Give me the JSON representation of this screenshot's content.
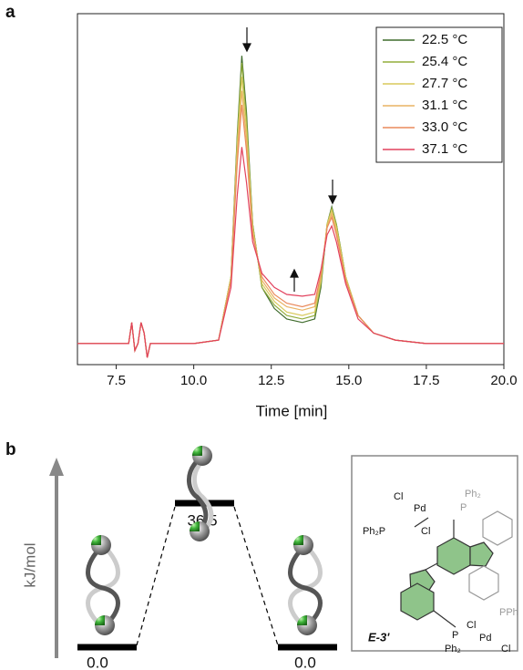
{
  "chart_data": {
    "type": "line",
    "panel_label": "a",
    "xlabel": "Time [min]",
    "xlim": [
      6.25,
      20.0
    ],
    "xticks": [
      7.5,
      {
        "value": 10,
        "label": "10.0"
      },
      12.5,
      {
        "value": 15,
        "label": "15.0"
      },
      17.5,
      {
        "value": 20,
        "label": "20.0"
      }
    ],
    "ylim": [
      0,
      100
    ],
    "legend": "upper right",
    "x": [
      6.25,
      7.9,
      8.0,
      8.1,
      8.2,
      8.3,
      8.4,
      8.5,
      8.6,
      8.8,
      10.0,
      10.8,
      11.2,
      11.4,
      11.55,
      11.7,
      11.9,
      12.2,
      12.6,
      13.0,
      13.5,
      13.9,
      14.1,
      14.3,
      14.45,
      14.6,
      14.9,
      15.3,
      15.8,
      16.5,
      17.5,
      20.0
    ],
    "series": [
      {
        "name": "22.5 °C",
        "color": "#3f6b2c",
        "values": [
          6,
          6,
          12,
          4,
          6,
          12,
          9,
          2,
          6,
          6,
          6,
          7,
          25,
          65,
          88,
          72,
          40,
          22,
          16,
          13,
          12,
          13,
          22,
          40,
          45,
          40,
          25,
          14,
          9,
          7,
          6,
          6
        ]
      },
      {
        "name": "25.4 °C",
        "color": "#93ad3c",
        "values": [
          6,
          6,
          12,
          4,
          6,
          12,
          9,
          2,
          6,
          6,
          6,
          7,
          25,
          64,
          86,
          70,
          40,
          22,
          17,
          14,
          13,
          14,
          23,
          40,
          44.5,
          40,
          25,
          14,
          9,
          7,
          6,
          6
        ]
      },
      {
        "name": "27.7 °C",
        "color": "#d9c95c",
        "values": [
          6,
          6,
          12,
          4,
          6,
          12,
          9,
          2,
          6,
          6,
          6,
          7,
          25,
          62,
          82,
          67,
          39,
          23,
          18,
          15,
          14,
          15,
          24,
          40,
          44,
          39,
          25,
          14,
          9,
          7,
          6,
          6
        ]
      },
      {
        "name": "31.1 °C",
        "color": "#e9b364",
        "values": [
          6,
          6,
          12,
          4,
          6,
          12,
          9,
          2,
          6,
          6,
          6,
          7,
          24,
          60,
          78,
          64,
          38,
          24,
          19,
          16.5,
          15.5,
          16.5,
          25,
          39,
          43,
          38,
          24,
          14,
          9,
          7,
          6,
          6
        ]
      },
      {
        "name": "33.0 °C",
        "color": "#ea8a5c",
        "values": [
          6,
          6,
          12,
          4,
          6,
          12,
          9,
          2,
          6,
          6,
          6,
          7,
          24,
          57,
          74,
          61,
          37,
          25,
          20,
          17.5,
          16.5,
          17.5,
          26,
          39,
          42,
          37,
          24,
          14,
          9,
          7,
          6,
          6
        ]
      },
      {
        "name": "37.1 °C",
        "color": "#e2415d",
        "values": [
          6,
          6,
          12,
          4,
          6,
          12,
          9,
          2,
          6,
          6,
          6,
          7,
          22,
          48,
          62,
          52,
          35,
          26,
          22,
          20,
          19.5,
          20,
          27,
          37,
          39.5,
          35,
          23,
          13,
          9,
          7,
          6,
          6
        ]
      }
    ]
  },
  "panel_b": {
    "label": "b",
    "axis_label": "kJ/mol",
    "levels": [
      "0.0",
      "36.5",
      "0.0"
    ],
    "compound": "E-3'",
    "structure_labels": [
      "Cl",
      "Pd",
      "Ph₂",
      "P",
      "Ph₂P",
      "Cl",
      "PPh",
      "Cl",
      "P",
      "Pd",
      "Ph₂",
      "Cl"
    ]
  }
}
